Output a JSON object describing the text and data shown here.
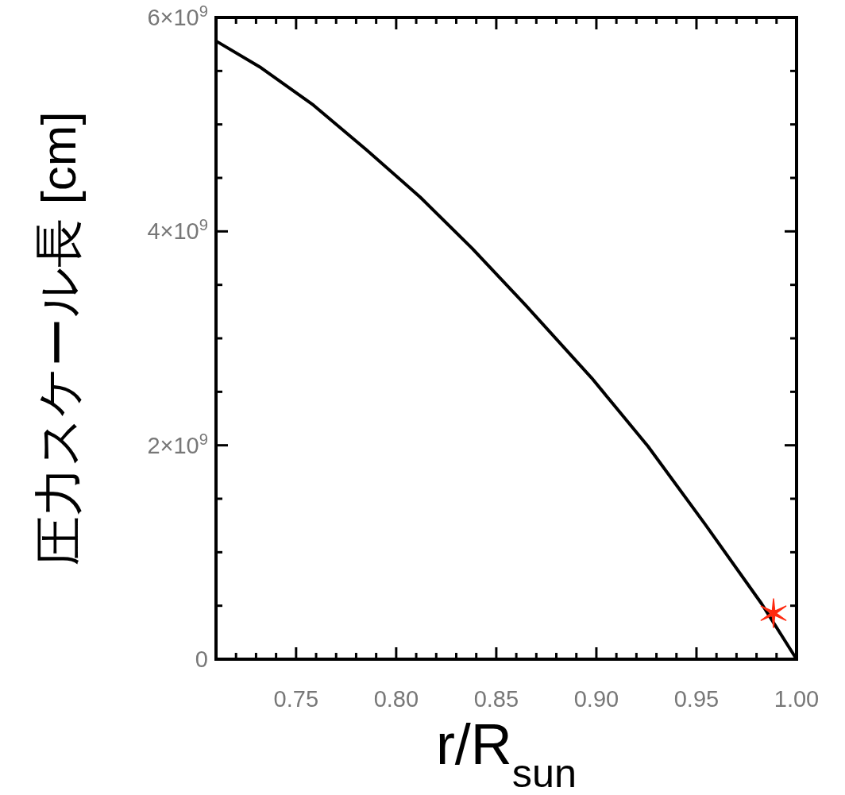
{
  "chart_data": {
    "type": "line",
    "xlabel": "r/R$_{sun}$",
    "ylabel": "圧力スケール長 [cm]",
    "xlim": [
      0.71,
      1.0
    ],
    "ylim": [
      0,
      6000000000
    ],
    "xticks": [
      {
        "value": 0.72,
        "label": null
      },
      {
        "value": 0.73,
        "label": null
      },
      {
        "value": 0.74,
        "label": null
      },
      {
        "value": 0.75,
        "label": "0.75"
      },
      {
        "value": 0.76,
        "label": null
      },
      {
        "value": 0.77,
        "label": null
      },
      {
        "value": 0.78,
        "label": null
      },
      {
        "value": 0.79,
        "label": null
      },
      {
        "value": 0.8,
        "label": "0.80"
      },
      {
        "value": 0.81,
        "label": null
      },
      {
        "value": 0.82,
        "label": null
      },
      {
        "value": 0.83,
        "label": null
      },
      {
        "value": 0.84,
        "label": null
      },
      {
        "value": 0.85,
        "label": "0.85"
      },
      {
        "value": 0.86,
        "label": null
      },
      {
        "value": 0.87,
        "label": null
      },
      {
        "value": 0.88,
        "label": null
      },
      {
        "value": 0.89,
        "label": null
      },
      {
        "value": 0.9,
        "label": "0.90"
      },
      {
        "value": 0.91,
        "label": null
      },
      {
        "value": 0.92,
        "label": null
      },
      {
        "value": 0.93,
        "label": null
      },
      {
        "value": 0.94,
        "label": null
      },
      {
        "value": 0.95,
        "label": "0.95"
      },
      {
        "value": 0.96,
        "label": null
      },
      {
        "value": 0.97,
        "label": null
      },
      {
        "value": 0.98,
        "label": null
      },
      {
        "value": 0.99,
        "label": null
      },
      {
        "value": 1.0,
        "label": "1.00"
      }
    ],
    "yticks": [
      {
        "value": 0,
        "label": "0"
      },
      {
        "value": 500000000,
        "label": null
      },
      {
        "value": 1000000000,
        "label": null
      },
      {
        "value": 1500000000,
        "label": null
      },
      {
        "value": 2000000000,
        "label": "2×10$^{9}$"
      },
      {
        "value": 2500000000,
        "label": null
      },
      {
        "value": 3000000000,
        "label": null
      },
      {
        "value": 3500000000,
        "label": null
      },
      {
        "value": 4000000000,
        "label": "4×10$^{9}$"
      },
      {
        "value": 4500000000,
        "label": null
      },
      {
        "value": 5000000000,
        "label": null
      },
      {
        "value": 5500000000,
        "label": null
      },
      {
        "value": 6000000000,
        "label": "6×10$^{9}$"
      }
    ],
    "series": [
      {
        "color": "#000000",
        "x": [
          0.71,
          0.7325,
          0.7587,
          0.7853,
          0.812,
          0.838,
          0.8647,
          0.8976,
          0.9258,
          0.9544,
          0.9825,
          1.0
        ],
        "values": [
          5780000000,
          5530000000,
          5180000000,
          4760000000,
          4320000000,
          3840000000,
          3310000000,
          2630000000,
          1990000000,
          1260000000,
          520000000,
          0
        ]
      },
      {
        "type": "scatter",
        "marker": "cross",
        "color": "#ff2a10",
        "x": [
          0.9885
        ],
        "values": [
          430000000
        ]
      }
    ]
  }
}
